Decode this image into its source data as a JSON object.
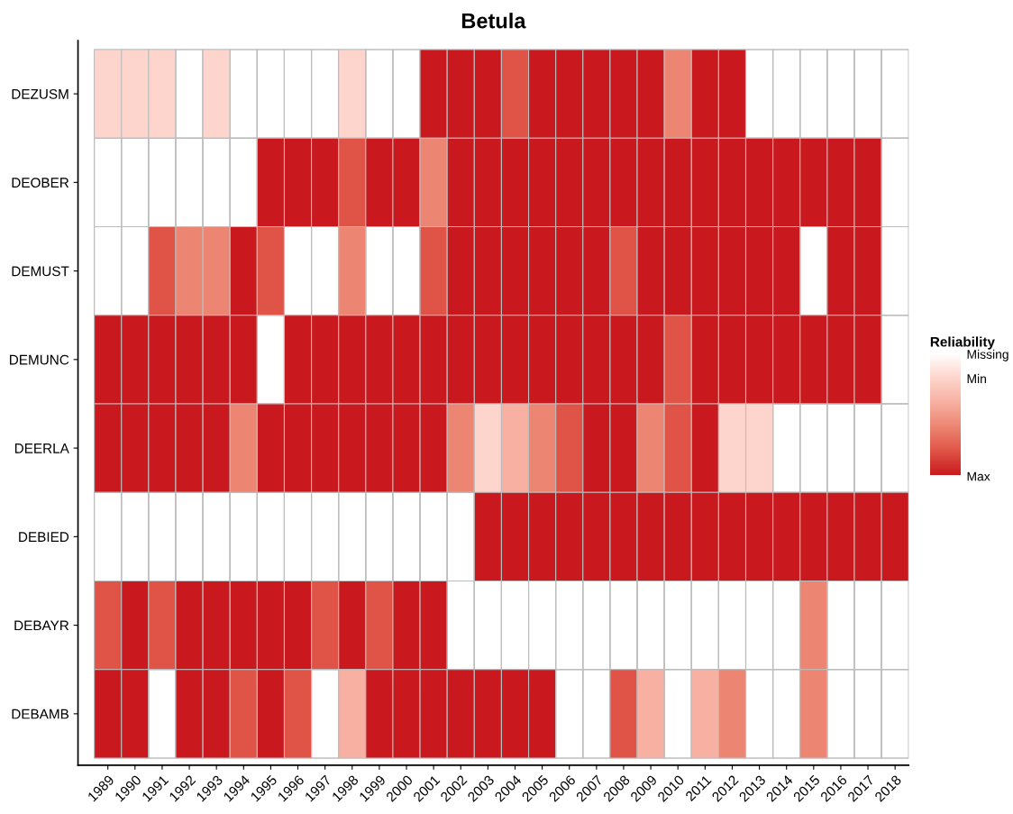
{
  "chart_data": {
    "type": "heatmap",
    "title": "Betula",
    "clabel": "Reliability",
    "categories": [
      "1989",
      "1990",
      "1991",
      "1992",
      "1993",
      "1994",
      "1995",
      "1996",
      "1997",
      "1998",
      "1999",
      "2000",
      "2001",
      "2002",
      "2003",
      "2004",
      "2005",
      "2006",
      "2007",
      "2008",
      "2009",
      "2010",
      "2011",
      "2012",
      "2013",
      "2014",
      "2015",
      "2016",
      "2017",
      "2018"
    ],
    "y_categories": [
      "DEZUSM",
      "DEOBER",
      "DEMUST",
      "DEMUNC",
      "DEERLA",
      "DEBIED",
      "DEBAYR",
      "DEBAMB"
    ],
    "cells": [
      [
        1,
        1,
        1,
        null,
        1,
        null,
        null,
        null,
        null,
        1,
        null,
        null,
        5,
        5,
        5,
        4,
        5,
        5,
        5,
        5,
        5,
        3,
        5,
        5,
        null,
        null,
        null,
        null,
        null,
        null
      ],
      [
        null,
        null,
        null,
        null,
        null,
        null,
        5,
        5,
        5,
        4,
        5,
        5,
        3,
        5,
        5,
        5,
        5,
        5,
        5,
        5,
        5,
        5,
        5,
        5,
        5,
        5,
        5,
        5,
        5,
        null
      ],
      [
        null,
        null,
        4,
        3,
        3,
        5,
        4,
        null,
        null,
        3,
        null,
        null,
        4,
        5,
        5,
        5,
        5,
        5,
        5,
        4,
        5,
        5,
        5,
        5,
        5,
        5,
        null,
        5,
        5,
        null
      ],
      [
        5,
        5,
        5,
        5,
        5,
        5,
        null,
        5,
        5,
        5,
        5,
        5,
        5,
        5,
        5,
        5,
        5,
        5,
        5,
        5,
        5,
        4,
        5,
        5,
        5,
        5,
        5,
        5,
        5,
        null
      ],
      [
        5,
        5,
        5,
        5,
        5,
        3,
        5,
        5,
        5,
        5,
        5,
        5,
        5,
        3,
        1,
        2,
        3,
        4,
        5,
        5,
        3,
        4,
        5,
        1,
        1,
        null,
        null,
        null,
        null,
        null
      ],
      [
        null,
        null,
        null,
        null,
        null,
        null,
        null,
        null,
        null,
        null,
        null,
        null,
        null,
        null,
        5,
        5,
        5,
        5,
        5,
        5,
        5,
        5,
        5,
        5,
        5,
        5,
        5,
        5,
        5,
        5
      ],
      [
        4,
        5,
        4,
        5,
        5,
        5,
        5,
        5,
        4,
        5,
        4,
        5,
        5,
        null,
        null,
        null,
        null,
        null,
        null,
        null,
        null,
        null,
        null,
        null,
        null,
        null,
        3,
        null,
        null,
        null
      ],
      [
        5,
        5,
        null,
        5,
        5,
        4,
        5,
        4,
        null,
        2,
        5,
        5,
        5,
        5,
        5,
        5,
        5,
        null,
        null,
        4,
        2,
        null,
        2,
        3,
        null,
        null,
        3,
        null,
        null,
        null
      ]
    ],
    "colors": [
      "#ffffff",
      "#fdd5cc",
      "#f7b0a2",
      "#ec8572",
      "#df5446",
      "#c9191e"
    ],
    "clim": [
      5,
      0
    ],
    "cticks": [
      {
        "value": 0,
        "label": "Missing"
      },
      {
        "value": 1,
        "label": "Min"
      },
      {
        "value": 5,
        "label": "Max"
      }
    ],
    "grid": false
  }
}
